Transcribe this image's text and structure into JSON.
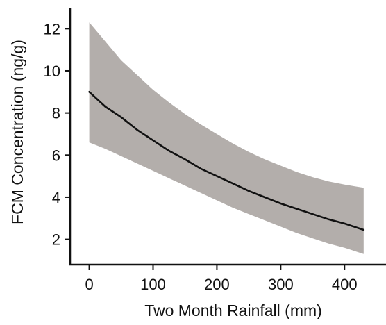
{
  "chart_data": {
    "type": "line",
    "title": "",
    "xlabel": "Two Month Rainfall (mm)",
    "ylabel": "FCM Concentration (ng/g)",
    "xlim": [
      -30,
      465
    ],
    "ylim": [
      0.8,
      13.0
    ],
    "x_ticks": [
      0,
      100,
      200,
      300,
      400
    ],
    "y_ticks": [
      2,
      4,
      6,
      8,
      10,
      12
    ],
    "grid": false,
    "legend": "none",
    "series": [
      {
        "x": [
          0,
          25,
          50,
          75,
          100,
          125,
          150,
          175,
          200,
          225,
          250,
          275,
          300,
          325,
          350,
          375,
          400,
          430
        ],
        "y": [
          9.0,
          8.3,
          7.8,
          7.2,
          6.7,
          6.2,
          5.8,
          5.35,
          5.0,
          4.65,
          4.3,
          4.0,
          3.7,
          3.45,
          3.2,
          2.95,
          2.75,
          2.45
        ]
      }
    ],
    "confidence_band": {
      "x": [
        0,
        25,
        50,
        75,
        100,
        125,
        150,
        175,
        200,
        225,
        250,
        275,
        300,
        325,
        350,
        375,
        400,
        430
      ],
      "upper": [
        12.3,
        11.4,
        10.5,
        9.8,
        9.1,
        8.5,
        7.95,
        7.45,
        7.0,
        6.55,
        6.15,
        5.8,
        5.5,
        5.2,
        4.95,
        4.75,
        4.6,
        4.45
      ],
      "lower": [
        6.6,
        6.3,
        5.95,
        5.6,
        5.25,
        4.9,
        4.55,
        4.2,
        3.85,
        3.5,
        3.2,
        2.9,
        2.6,
        2.3,
        2.05,
        1.8,
        1.6,
        1.3
      ]
    },
    "colors": {
      "line": "#111111",
      "band": "#b3aeab",
      "axis": "#111111"
    }
  }
}
